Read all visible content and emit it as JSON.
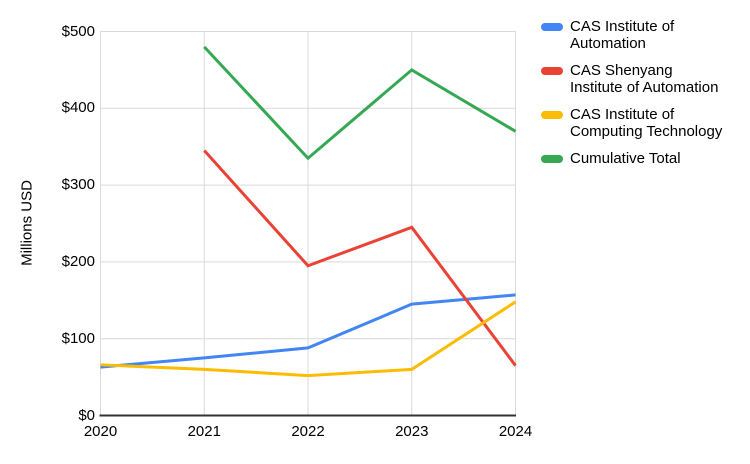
{
  "chart_data": {
    "type": "line",
    "title": "",
    "xlabel": "",
    "ylabel": "Millions USD",
    "x_ticks": [
      "2020",
      "2021",
      "2022",
      "2023",
      "2024"
    ],
    "y_ticks": [
      "$0",
      "$100",
      "$200",
      "$300",
      "$400",
      "$500"
    ],
    "y_tick_values": [
      0,
      100,
      200,
      300,
      400,
      500
    ],
    "ylim": [
      0,
      500
    ],
    "grid": true,
    "grid_color": "#d9d9d9",
    "axis_color": "#333333",
    "background_color": "#ffffff",
    "legend_position": "right",
    "series": [
      {
        "name": "CAS Institute of Automation",
        "color": "#4285F4",
        "values": [
          63,
          75,
          88,
          145,
          157
        ]
      },
      {
        "name": "CAS Shenyang Institute of Automation",
        "color": "#EA4335",
        "values": [
          null,
          345,
          195,
          245,
          65
        ]
      },
      {
        "name": "CAS Institute of Computing Technology",
        "color": "#FBBC04",
        "values": [
          66,
          60,
          52,
          60,
          148
        ]
      },
      {
        "name": "Cumulative Total",
        "color": "#34A853",
        "values": [
          null,
          480,
          335,
          450,
          370
        ]
      }
    ]
  },
  "legend": {
    "items": [
      {
        "label_lines": [
          "CAS Institute of",
          "Automation"
        ],
        "color": "#4285F4"
      },
      {
        "label_lines": [
          "CAS Shenyang",
          "Institute of Automation"
        ],
        "color": "#EA4335"
      },
      {
        "label_lines": [
          "CAS Institute of",
          "Computing Technology"
        ],
        "color": "#FBBC04"
      },
      {
        "label_lines": [
          "Cumulative Total"
        ],
        "color": "#34A853"
      }
    ]
  }
}
